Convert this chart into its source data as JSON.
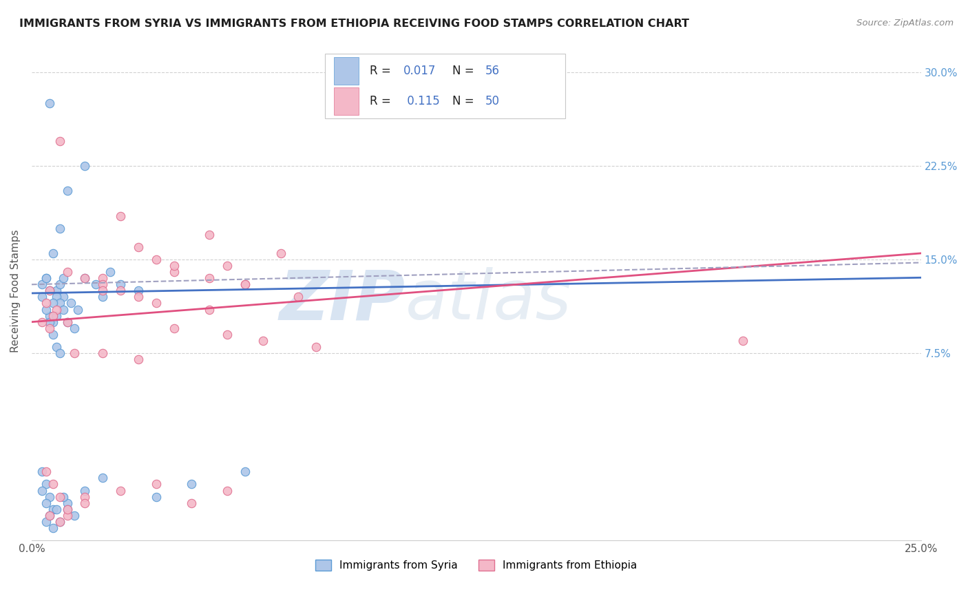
{
  "title": "IMMIGRANTS FROM SYRIA VS IMMIGRANTS FROM ETHIOPIA RECEIVING FOOD STAMPS CORRELATION CHART",
  "source": "Source: ZipAtlas.com",
  "ylabel": "Receiving Food Stamps",
  "watermark_zip": "ZIP",
  "watermark_atlas": "atlas",
  "xlim": [
    0.0,
    25.0
  ],
  "ylim": [
    -7.5,
    32.5
  ],
  "xticks": [
    0.0,
    5.0,
    10.0,
    15.0,
    20.0,
    25.0
  ],
  "yticks": [
    7.5,
    15.0,
    22.5,
    30.0
  ],
  "syria_color": "#aec6e8",
  "syria_edge": "#5b9bd5",
  "ethiopia_color": "#f4b8c8",
  "ethiopia_edge": "#e07090",
  "syria_line_color": "#4472c4",
  "ethiopia_line_color": "#e05080",
  "trendline_dash_color": "#a0a0c0",
  "legend_label_syria": "Immigrants from Syria",
  "legend_label_ethiopia": "Immigrants from Ethiopia",
  "background_color": "#ffffff",
  "grid_color": "#cccccc",
  "right_tick_color": "#5b9bd5",
  "syria_scatter_x": [
    0.5,
    1.5,
    1.0,
    0.8,
    0.6,
    0.4,
    0.3,
    0.7,
    0.9,
    1.1,
    1.3,
    0.5,
    0.6,
    0.7,
    0.8,
    0.9,
    1.0,
    1.2,
    0.4,
    0.5,
    0.6,
    0.7,
    0.8,
    1.5,
    2.0,
    2.5,
    3.0,
    0.3,
    0.4,
    0.5,
    0.6,
    0.7,
    0.8,
    0.9,
    0.3,
    0.4,
    0.5,
    0.6,
    1.0,
    1.5,
    2.0,
    1.0,
    0.5,
    0.4,
    0.6,
    0.8,
    1.2,
    3.5,
    4.5,
    6.0,
    0.3,
    0.4,
    1.8,
    2.2,
    0.7,
    0.9
  ],
  "syria_scatter_y": [
    27.5,
    22.5,
    20.5,
    17.5,
    15.5,
    13.5,
    13.0,
    12.5,
    12.0,
    11.5,
    11.0,
    10.5,
    10.0,
    12.0,
    11.5,
    11.0,
    10.0,
    9.5,
    13.5,
    12.5,
    11.5,
    10.5,
    13.0,
    13.5,
    12.0,
    13.0,
    12.5,
    12.0,
    11.0,
    10.0,
    9.0,
    8.0,
    7.5,
    13.5,
    -2.0,
    -3.0,
    -4.0,
    -5.0,
    -4.5,
    -3.5,
    -2.5,
    -5.0,
    -5.5,
    -6.0,
    -6.5,
    -6.0,
    -5.5,
    -4.0,
    -3.0,
    -2.0,
    -3.5,
    -4.5,
    13.0,
    14.0,
    -5.0,
    -4.0
  ],
  "ethiopia_scatter_x": [
    8.0,
    0.8,
    2.5,
    3.0,
    5.0,
    7.0,
    2.0,
    3.5,
    5.5,
    0.5,
    1.0,
    1.5,
    2.0,
    2.5,
    3.0,
    4.0,
    5.0,
    6.0,
    7.5,
    0.4,
    0.6,
    0.8,
    1.0,
    1.5,
    2.5,
    3.5,
    4.5,
    5.5,
    0.5,
    0.8,
    1.0,
    1.5,
    2.0,
    3.0,
    4.0,
    5.5,
    6.5,
    0.3,
    0.5,
    0.7,
    1.2,
    2.0,
    3.5,
    5.0,
    0.4,
    0.6,
    1.0,
    4.0,
    6.0,
    20.0
  ],
  "ethiopia_scatter_y": [
    8.0,
    24.5,
    18.5,
    16.0,
    17.0,
    15.5,
    13.5,
    15.0,
    14.5,
    12.5,
    14.0,
    13.5,
    13.0,
    12.5,
    12.0,
    14.0,
    13.5,
    13.0,
    12.0,
    -2.0,
    -3.0,
    -4.0,
    -5.5,
    -4.0,
    -3.5,
    -3.0,
    -4.5,
    -3.5,
    -5.5,
    -6.0,
    -5.0,
    -4.5,
    7.5,
    7.0,
    9.5,
    9.0,
    8.5,
    10.0,
    9.5,
    11.0,
    7.5,
    12.5,
    11.5,
    11.0,
    11.5,
    10.5,
    10.0,
    14.5,
    13.0,
    8.5
  ]
}
